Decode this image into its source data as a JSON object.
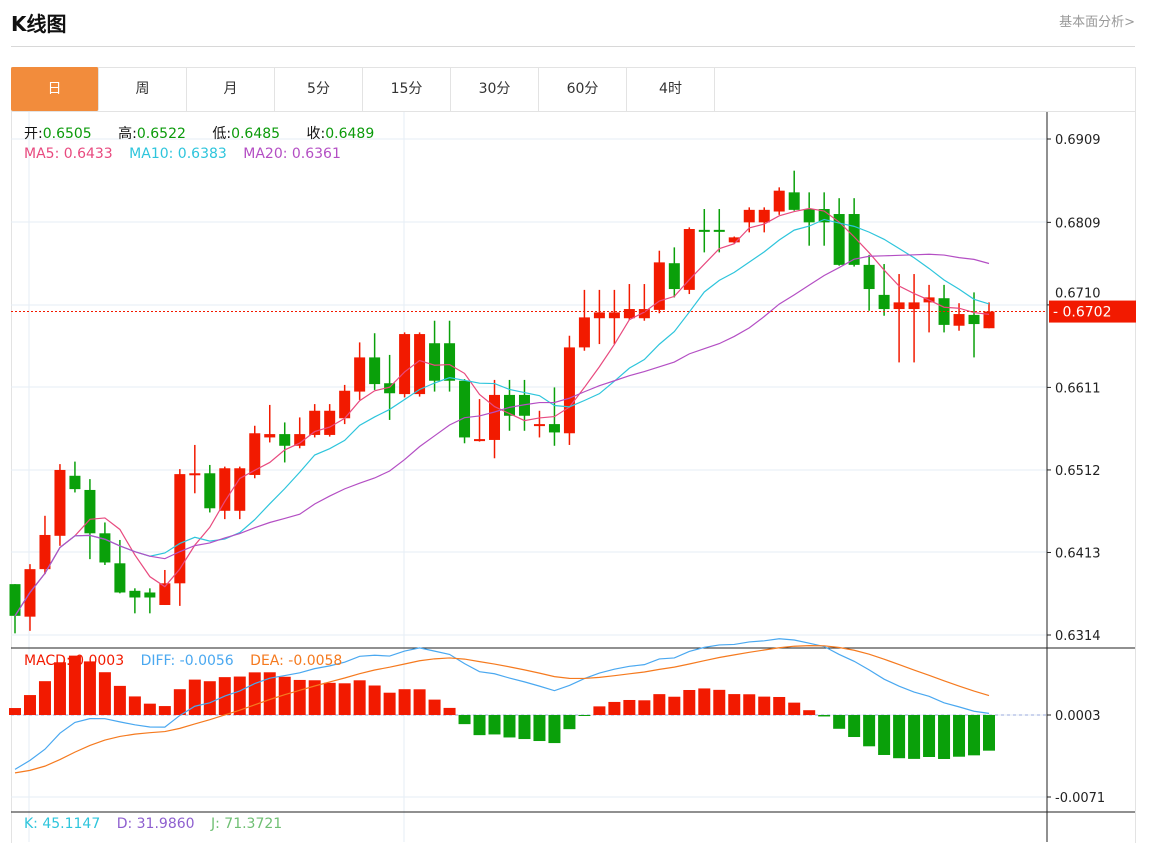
{
  "header": {
    "title": "K线图",
    "link": "基本面分析>"
  },
  "tabs": [
    {
      "label": "日",
      "active": true
    },
    {
      "label": "周"
    },
    {
      "label": "月"
    },
    {
      "label": "5分"
    },
    {
      "label": "15分"
    },
    {
      "label": "30分"
    },
    {
      "label": "60分"
    },
    {
      "label": "4时"
    }
  ],
  "ohlc_info": {
    "open_label": "开:",
    "open": "0.6505",
    "high_label": "高:",
    "high": "0.6522",
    "low_label": "低:",
    "low": "0.6485",
    "close_label": "收:",
    "close": "0.6489"
  },
  "ma_info": {
    "ma5": "MA5: 0.6433",
    "ma10": "MA10: 0.6383",
    "ma20": "MA20: 0.6361"
  },
  "macd_info": {
    "macd": "MACD: 0.0003",
    "diff": "DIFF: -0.0056",
    "dea": "DEA: -0.0058"
  },
  "kdj_info": {
    "k": "K: 45.1147",
    "d": "D: 31.9860",
    "j": "J: 71.3721"
  },
  "current_price": "0.6702",
  "colors": {
    "up": "#f21a00",
    "down": "#0aa00a",
    "ma5": "#e84a7f",
    "ma10": "#2ec5dc",
    "ma20": "#b44fc4",
    "diff": "#4aa8f0",
    "dea": "#f57a1f",
    "accent": "#f28c3c"
  },
  "chart_data": {
    "type": "candlestick",
    "title": "K线图",
    "price_axis": {
      "ticks": [
        "0.6909",
        "0.6809",
        "0.6710",
        "0.6611",
        "0.6512",
        "0.6413",
        "0.6314"
      ],
      "range": [
        0.6314,
        0.6909
      ]
    },
    "macd_axis": {
      "ticks": [
        "0.0003",
        "-0.0071"
      ]
    },
    "indicators": [
      "MA5",
      "MA10",
      "MA20",
      "MACD",
      "DIFF",
      "DEA"
    ],
    "candles": [
      [
        0.6375,
        0.6375,
        0.6316,
        0.6337
      ],
      [
        0.6336,
        0.6399,
        0.6319,
        0.6393
      ],
      [
        0.6393,
        0.6457,
        0.6387,
        0.6434
      ],
      [
        0.6433,
        0.6519,
        0.6421,
        0.6512
      ],
      [
        0.6505,
        0.6522,
        0.6485,
        0.6489
      ],
      [
        0.6488,
        0.6501,
        0.6405,
        0.6436
      ],
      [
        0.6436,
        0.6449,
        0.6398,
        0.6401
      ],
      [
        0.64,
        0.6428,
        0.6364,
        0.6365
      ],
      [
        0.6367,
        0.637,
        0.634,
        0.6359
      ],
      [
        0.6365,
        0.637,
        0.634,
        0.6359
      ],
      [
        0.635,
        0.6392,
        0.635,
        0.6376
      ],
      [
        0.6376,
        0.6513,
        0.6349,
        0.6507
      ],
      [
        0.6506,
        0.6542,
        0.6484,
        0.6508
      ],
      [
        0.6508,
        0.6518,
        0.6461,
        0.6466
      ],
      [
        0.6463,
        0.6516,
        0.6453,
        0.6514
      ],
      [
        0.6463,
        0.6516,
        0.6453,
        0.6514
      ],
      [
        0.6506,
        0.6565,
        0.6502,
        0.6556
      ],
      [
        0.6551,
        0.659,
        0.6545,
        0.6555
      ],
      [
        0.6555,
        0.6569,
        0.6521,
        0.6541
      ],
      [
        0.6541,
        0.6575,
        0.6538,
        0.6555
      ],
      [
        0.6554,
        0.6591,
        0.6551,
        0.6583
      ],
      [
        0.6554,
        0.6591,
        0.6552,
        0.6583
      ],
      [
        0.6574,
        0.6614,
        0.6567,
        0.6607
      ],
      [
        0.6606,
        0.6665,
        0.6596,
        0.6647
      ],
      [
        0.6647,
        0.6676,
        0.6608,
        0.6615
      ],
      [
        0.6616,
        0.665,
        0.6572,
        0.6604
      ],
      [
        0.6603,
        0.6677,
        0.6599,
        0.6675
      ],
      [
        0.6603,
        0.6677,
        0.66,
        0.6675
      ],
      [
        0.6664,
        0.6691,
        0.6606,
        0.6619
      ],
      [
        0.6664,
        0.6691,
        0.6606,
        0.6619
      ],
      [
        0.6619,
        0.6621,
        0.6544,
        0.6551
      ],
      [
        0.6547,
        0.6597,
        0.6546,
        0.6549
      ],
      [
        0.6548,
        0.662,
        0.6526,
        0.6602
      ],
      [
        0.6602,
        0.662,
        0.6559,
        0.6577
      ],
      [
        0.6602,
        0.662,
        0.6559,
        0.6577
      ],
      [
        0.6565,
        0.6583,
        0.6551,
        0.6567
      ],
      [
        0.6567,
        0.6611,
        0.6541,
        0.6557
      ],
      [
        0.6556,
        0.6673,
        0.6542,
        0.6659
      ],
      [
        0.6659,
        0.6728,
        0.6655,
        0.6695
      ],
      [
        0.6694,
        0.6728,
        0.6663,
        0.6701
      ],
      [
        0.6694,
        0.6728,
        0.6663,
        0.6701
      ],
      [
        0.6694,
        0.6735,
        0.6692,
        0.6705
      ],
      [
        0.6694,
        0.6735,
        0.6691,
        0.6705
      ],
      [
        0.6704,
        0.6775,
        0.67,
        0.6761
      ],
      [
        0.676,
        0.6779,
        0.6719,
        0.6729
      ],
      [
        0.6728,
        0.6803,
        0.6723,
        0.6801
      ],
      [
        0.68,
        0.6825,
        0.6773,
        0.6798
      ],
      [
        0.68,
        0.6825,
        0.6773,
        0.6798
      ],
      [
        0.6785,
        0.6792,
        0.6784,
        0.6791
      ],
      [
        0.6809,
        0.6827,
        0.6797,
        0.6824
      ],
      [
        0.6809,
        0.6827,
        0.6797,
        0.6824
      ],
      [
        0.6822,
        0.6851,
        0.6818,
        0.6847
      ],
      [
        0.6845,
        0.6871,
        0.6823,
        0.6824
      ],
      [
        0.6825,
        0.6845,
        0.6781,
        0.6809
      ],
      [
        0.6825,
        0.6845,
        0.6781,
        0.6809
      ],
      [
        0.6819,
        0.6838,
        0.6757,
        0.6758
      ],
      [
        0.6819,
        0.6838,
        0.6756,
        0.6758
      ],
      [
        0.6758,
        0.677,
        0.6703,
        0.6729
      ],
      [
        0.6722,
        0.6759,
        0.6697,
        0.6705
      ],
      [
        0.6705,
        0.6747,
        0.6641,
        0.6713
      ],
      [
        0.6705,
        0.6747,
        0.6641,
        0.6713
      ],
      [
        0.6713,
        0.6734,
        0.6677,
        0.6719
      ],
      [
        0.6718,
        0.6734,
        0.6677,
        0.6686
      ],
      [
        0.6685,
        0.6712,
        0.6679,
        0.6699
      ],
      [
        0.6698,
        0.6725,
        0.6647,
        0.6687
      ],
      [
        0.6682,
        0.6713,
        0.6682,
        0.6702
      ]
    ]
  }
}
